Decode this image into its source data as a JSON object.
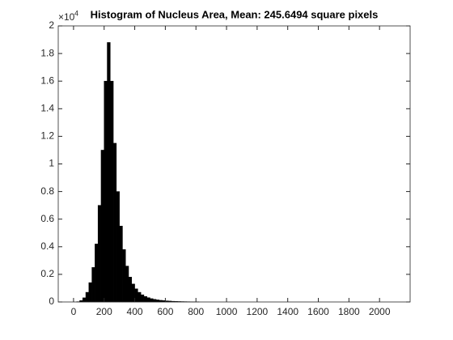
{
  "chart_data": {
    "type": "histogram",
    "title": "Histogram of Nucleus Area, Mean: 245.6494 square pixels",
    "bins": [
      0,
      20,
      40,
      60,
      80,
      100,
      120,
      140,
      160,
      180,
      200,
      220,
      240,
      260,
      280,
      300,
      320,
      340,
      360,
      380,
      400,
      420,
      440,
      460,
      480,
      500,
      520,
      540,
      560,
      580,
      600,
      620,
      640,
      660,
      680,
      700,
      720,
      740,
      760,
      780,
      800,
      820
    ],
    "counts": [
      0,
      0.002,
      0.01,
      0.03,
      0.07,
      0.14,
      0.25,
      0.42,
      0.7,
      1.1,
      1.6,
      1.88,
      1.6,
      1.15,
      0.8,
      0.55,
      0.38,
      0.26,
      0.18,
      0.13,
      0.095,
      0.07,
      0.052,
      0.04,
      0.031,
      0.024,
      0.019,
      0.015,
      0.012,
      0.01,
      0.008,
      0.0065,
      0.005,
      0.004,
      0.0033,
      0.0027,
      0.0022,
      0.0018,
      0.0015,
      0.0012,
      0.001
    ],
    "color": "#000000",
    "xlim": [
      -100,
      2200
    ],
    "xticks": [
      0,
      200,
      400,
      600,
      800,
      1000,
      1200,
      1400,
      1600,
      1800,
      2000
    ],
    "ylim": [
      0,
      2
    ],
    "yticks": [
      0,
      0.2,
      0.4,
      0.6,
      0.8,
      1,
      1.2,
      1.4,
      1.6,
      1.8,
      2
    ],
    "y_exponent_label": "×10",
    "y_exponent": 4
  }
}
